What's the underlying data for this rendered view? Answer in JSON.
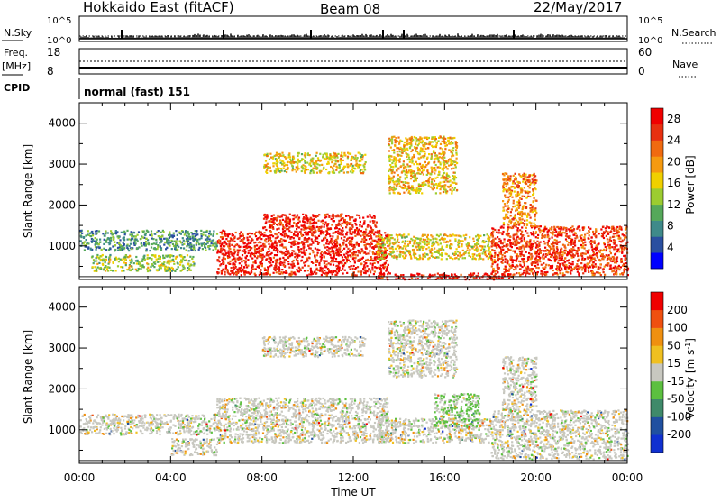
{
  "header": {
    "station": "Hokkaido East (fitACF)",
    "beam": "Beam 08",
    "date": "22/May/2017"
  },
  "status_panel": {
    "nsky_label": "N.Sky",
    "nsky_ticks": [
      "10^5",
      "10^0"
    ],
    "nsky_right_ticks": [
      "10^5",
      "10^0"
    ],
    "nsearch_label": "N.Search",
    "freq_label_1": "Freq.",
    "freq_label_2": "[MHz]",
    "freq_ticks": [
      "18",
      "8"
    ],
    "nave_ticks": [
      "60",
      "0"
    ],
    "nave_label": "Nave",
    "cpid_label": "CPID",
    "cpid_value": "normal (fast) 151"
  },
  "time_axis": {
    "label": "Time UT",
    "ticks": [
      "00:00",
      "04:00",
      "08:00",
      "12:00",
      "16:00",
      "20:00",
      "00:00"
    ]
  },
  "colors": {
    "power": [
      "#0000ff",
      "#2a4fa0",
      "#3f8a8a",
      "#55a85a",
      "#9ccc30",
      "#f0d000",
      "#f59a10",
      "#f06a10",
      "#e83010",
      "#f00000"
    ],
    "velocity": [
      "#1030d0",
      "#2050a0",
      "#3f8a6a",
      "#5cc040",
      "#c8c8c0",
      "#f0c020",
      "#f09010",
      "#f05010",
      "#f00000"
    ]
  },
  "chart_data": [
    {
      "type": "heatmap",
      "title": "",
      "xlabel": "Time UT",
      "ylabel": "Slant Range [km]",
      "xlim": [
        0,
        24
      ],
      "ylim": [
        180,
        4500
      ],
      "yticks": [
        "1000",
        "2000",
        "3000",
        "4000"
      ],
      "colorbar": {
        "label": "Power [dB]",
        "ticks": [
          "4",
          "8",
          "12",
          "16",
          "20",
          "24",
          "28"
        ],
        "range": [
          0,
          30
        ]
      },
      "regions": [
        {
          "t0": 0.0,
          "t1": 6.0,
          "r0": 900,
          "r1": 1400,
          "level": 0.3
        },
        {
          "t0": 0.5,
          "t1": 5.0,
          "r0": 400,
          "r1": 800,
          "level": 0.45
        },
        {
          "t0": 6.0,
          "t1": 13.5,
          "r0": 300,
          "r1": 1400,
          "level": 0.92
        },
        {
          "t0": 8.0,
          "t1": 13.0,
          "r0": 1400,
          "r1": 1800,
          "level": 0.9
        },
        {
          "t0": 13.0,
          "t1": 18.0,
          "r0": 700,
          "r1": 1300,
          "level": 0.55
        },
        {
          "t0": 18.0,
          "t1": 24.0,
          "r0": 300,
          "r1": 1500,
          "level": 0.85
        },
        {
          "t0": 13.0,
          "t1": 19.0,
          "r0": 200,
          "r1": 350,
          "level": 0.95
        },
        {
          "t0": 13.5,
          "t1": 16.5,
          "r0": 2300,
          "r1": 3700,
          "level": 0.6
        },
        {
          "t0": 8.0,
          "t1": 12.5,
          "r0": 2800,
          "r1": 3300,
          "level": 0.55
        },
        {
          "t0": 18.5,
          "t1": 20.0,
          "r0": 1500,
          "r1": 2800,
          "level": 0.7
        }
      ]
    },
    {
      "type": "heatmap",
      "title": "",
      "xlabel": "Time UT",
      "ylabel": "Slant Range [km]",
      "xlim": [
        0,
        24
      ],
      "ylim": [
        180,
        4500
      ],
      "yticks": [
        "1000",
        "2000",
        "3000",
        "4000"
      ],
      "colorbar": {
        "label": "Velocity [m s^-1]",
        "ticks": [
          "200",
          "100",
          "50",
          "15",
          "-15",
          "-50",
          "-100",
          "-200"
        ],
        "range": [
          -250,
          250
        ]
      },
      "regions": [
        {
          "t0": 0.0,
          "t1": 6.0,
          "r0": 900,
          "r1": 1400,
          "level": 0.5
        },
        {
          "t0": 4.0,
          "t1": 6.0,
          "r0": 400,
          "r1": 800,
          "level": 0.5
        },
        {
          "t0": 6.0,
          "t1": 13.5,
          "r0": 700,
          "r1": 1800,
          "level": 0.5
        },
        {
          "t0": 13.0,
          "t1": 18.0,
          "r0": 700,
          "r1": 1300,
          "level": 0.5
        },
        {
          "t0": 18.0,
          "t1": 24.0,
          "r0": 300,
          "r1": 1500,
          "level": 0.5
        },
        {
          "t0": 15.5,
          "t1": 17.5,
          "r0": 1100,
          "r1": 1900,
          "level": 0.35
        },
        {
          "t0": 13.5,
          "t1": 16.5,
          "r0": 2300,
          "r1": 3700,
          "level": 0.5
        },
        {
          "t0": 8.0,
          "t1": 12.5,
          "r0": 2800,
          "r1": 3300,
          "level": 0.5
        },
        {
          "t0": 18.5,
          "t1": 20.0,
          "r0": 1500,
          "r1": 2800,
          "level": 0.5
        }
      ]
    }
  ]
}
